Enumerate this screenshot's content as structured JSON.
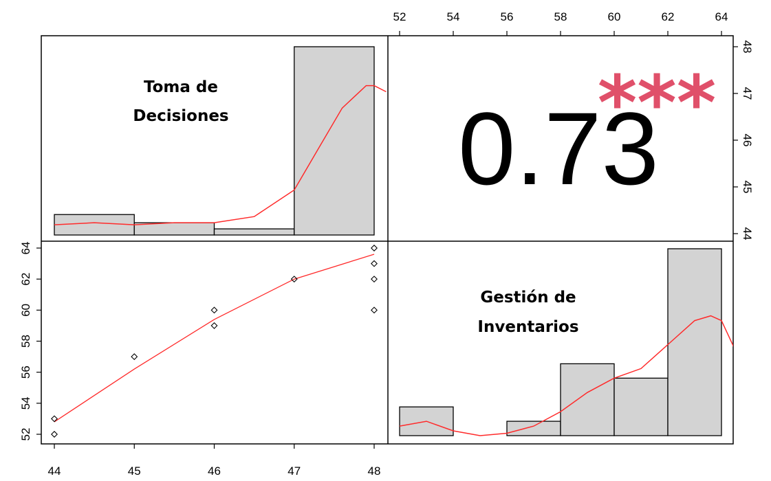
{
  "colors": {
    "bar_fill": "#d3d3d3",
    "bar_stroke": "#000000",
    "smooth_line": "#ff2a2a",
    "stars": "#e0506a",
    "frame": "#000000"
  },
  "chart_data": {
    "type": "pairs-panel",
    "variables": [
      "Toma de Decisiones",
      "Gestión de Inventarios"
    ],
    "panel_labels": {
      "var1_line1": "Toma de",
      "var1_line2": "Decisiones",
      "var2_line1": "Gestión de",
      "var2_line2": "Inventarios"
    },
    "correlation": {
      "value": "0.73",
      "significance": "***"
    },
    "axes": {
      "var1_range": [
        44,
        48
      ],
      "var2_range": [
        52,
        64
      ],
      "top_ticks": [
        "52",
        "54",
        "56",
        "58",
        "60",
        "62",
        "64"
      ],
      "right_ticks": [
        "44",
        "45",
        "46",
        "47",
        "48"
      ],
      "left_ticks": [
        "52",
        "54",
        "56",
        "58",
        "60",
        "62",
        "64"
      ],
      "bottom_ticks": [
        "44",
        "45",
        "46",
        "47",
        "48"
      ]
    },
    "histogram_var1": {
      "bins": [
        [
          44,
          45
        ],
        [
          45,
          46
        ],
        [
          46,
          47
        ],
        [
          47,
          48
        ]
      ],
      "density": [
        0.1,
        0.06,
        0.03,
        0.92
      ],
      "density_curve": {
        "x": [
          44.0,
          44.5,
          45.0,
          45.5,
          46.0,
          46.5,
          47.0,
          47.3,
          47.6,
          47.9,
          48.0,
          48.15
        ],
        "y": [
          0.05,
          0.06,
          0.05,
          0.06,
          0.06,
          0.09,
          0.22,
          0.42,
          0.62,
          0.73,
          0.73,
          0.7
        ]
      }
    },
    "histogram_var2": {
      "bins": [
        [
          52,
          54
        ],
        [
          54,
          56
        ],
        [
          56,
          58
        ],
        [
          58,
          60
        ],
        [
          60,
          62
        ],
        [
          62,
          64
        ]
      ],
      "density": [
        0.06,
        0.0,
        0.03,
        0.15,
        0.12,
        0.39
      ],
      "density_curve": {
        "x": [
          52.0,
          53.0,
          54.0,
          55.0,
          56.0,
          57.0,
          58.0,
          59.0,
          60.0,
          61.0,
          62.0,
          63.0,
          63.6,
          64.0,
          64.5
        ],
        "y": [
          0.02,
          0.03,
          0.01,
          0.0,
          0.005,
          0.02,
          0.05,
          0.09,
          0.12,
          0.14,
          0.19,
          0.24,
          0.25,
          0.24,
          0.18
        ]
      }
    },
    "scatter": {
      "x": [
        44,
        44,
        45,
        46,
        46,
        47,
        48,
        48,
        48,
        48
      ],
      "y": [
        53,
        52,
        57,
        60,
        59,
        62,
        64,
        63,
        62,
        60
      ]
    },
    "scatter_smooth": {
      "x": [
        44,
        45,
        46,
        47,
        48
      ],
      "y": [
        52.8,
        56.2,
        59.4,
        62.0,
        63.6
      ]
    }
  }
}
